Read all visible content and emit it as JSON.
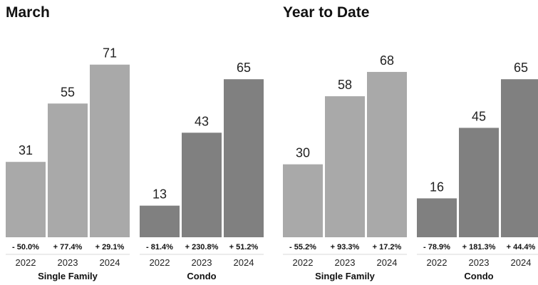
{
  "chart_data": [
    {
      "type": "bar",
      "title": "March",
      "ylim": [
        0,
        80
      ],
      "grid": false,
      "groups": [
        {
          "name": "Single Family",
          "color": "#a9a9a9",
          "categories": [
            "2022",
            "2023",
            "2024"
          ],
          "values": [
            31,
            55,
            71
          ],
          "changes": [
            "- 50.0%",
            "+ 77.4%",
            "+ 29.1%"
          ]
        },
        {
          "name": "Condo",
          "color": "#808080",
          "categories": [
            "2022",
            "2023",
            "2024"
          ],
          "values": [
            13,
            43,
            65
          ],
          "changes": [
            "- 81.4%",
            "+ 230.8%",
            "+ 51.2%"
          ]
        }
      ]
    },
    {
      "type": "bar",
      "title": "Year to Date",
      "ylim": [
        0,
        80
      ],
      "grid": false,
      "groups": [
        {
          "name": "Single Family",
          "color": "#a9a9a9",
          "categories": [
            "2022",
            "2023",
            "2024"
          ],
          "values": [
            30,
            58,
            68
          ],
          "changes": [
            "- 55.2%",
            "+ 93.3%",
            "+ 17.2%"
          ]
        },
        {
          "name": "Condo",
          "color": "#808080",
          "categories": [
            "2022",
            "2023",
            "2024"
          ],
          "values": [
            16,
            45,
            65
          ],
          "changes": [
            "- 78.9%",
            "+ 181.3%",
            "+ 44.4%"
          ]
        }
      ]
    }
  ]
}
